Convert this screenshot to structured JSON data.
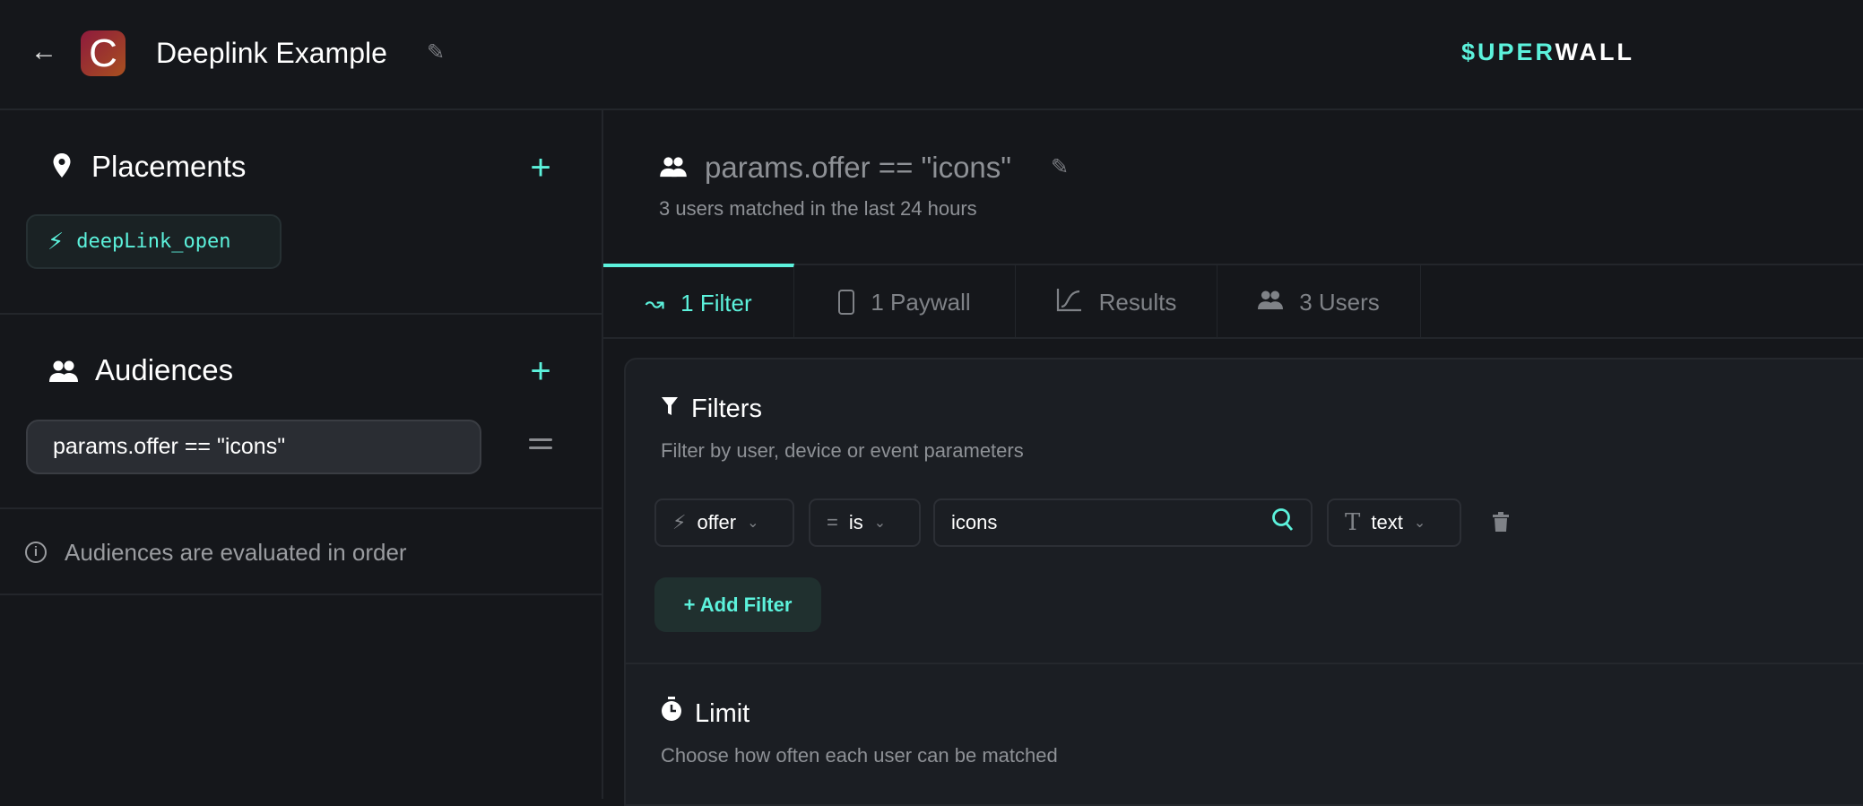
{
  "header": {
    "title": "Deeplink Example",
    "app_initial": "C",
    "logo_accent": "$UPER",
    "logo_rest": "WALL"
  },
  "sidebar": {
    "placements": {
      "title": "Placements",
      "items": [
        {
          "label": "deepLink_open"
        }
      ]
    },
    "audiences": {
      "title": "Audiences",
      "items": [
        {
          "label": "params.offer == \"icons\""
        }
      ]
    },
    "info": "Audiences are evaluated in order"
  },
  "main": {
    "title": "params.offer == \"icons\"",
    "subtitle": "3 users matched in the last 24 hours",
    "tabs": [
      {
        "label": "1 Filter",
        "active": true
      },
      {
        "label": "1 Paywall"
      },
      {
        "label": "Results"
      },
      {
        "label": "3 Users"
      }
    ],
    "filters": {
      "title": "Filters",
      "subtitle": "Filter by user, device or event parameters",
      "row": {
        "field": "offer",
        "operator_symbol": "=",
        "operator": "is",
        "value": "icons",
        "type": "text"
      },
      "add_label": "+ Add Filter"
    },
    "limit": {
      "title": "Limit",
      "subtitle": "Choose how often each user can be matched"
    }
  },
  "colors": {
    "accent": "#5cf2dc",
    "background": "#15171b",
    "card": "#1b1e23"
  }
}
